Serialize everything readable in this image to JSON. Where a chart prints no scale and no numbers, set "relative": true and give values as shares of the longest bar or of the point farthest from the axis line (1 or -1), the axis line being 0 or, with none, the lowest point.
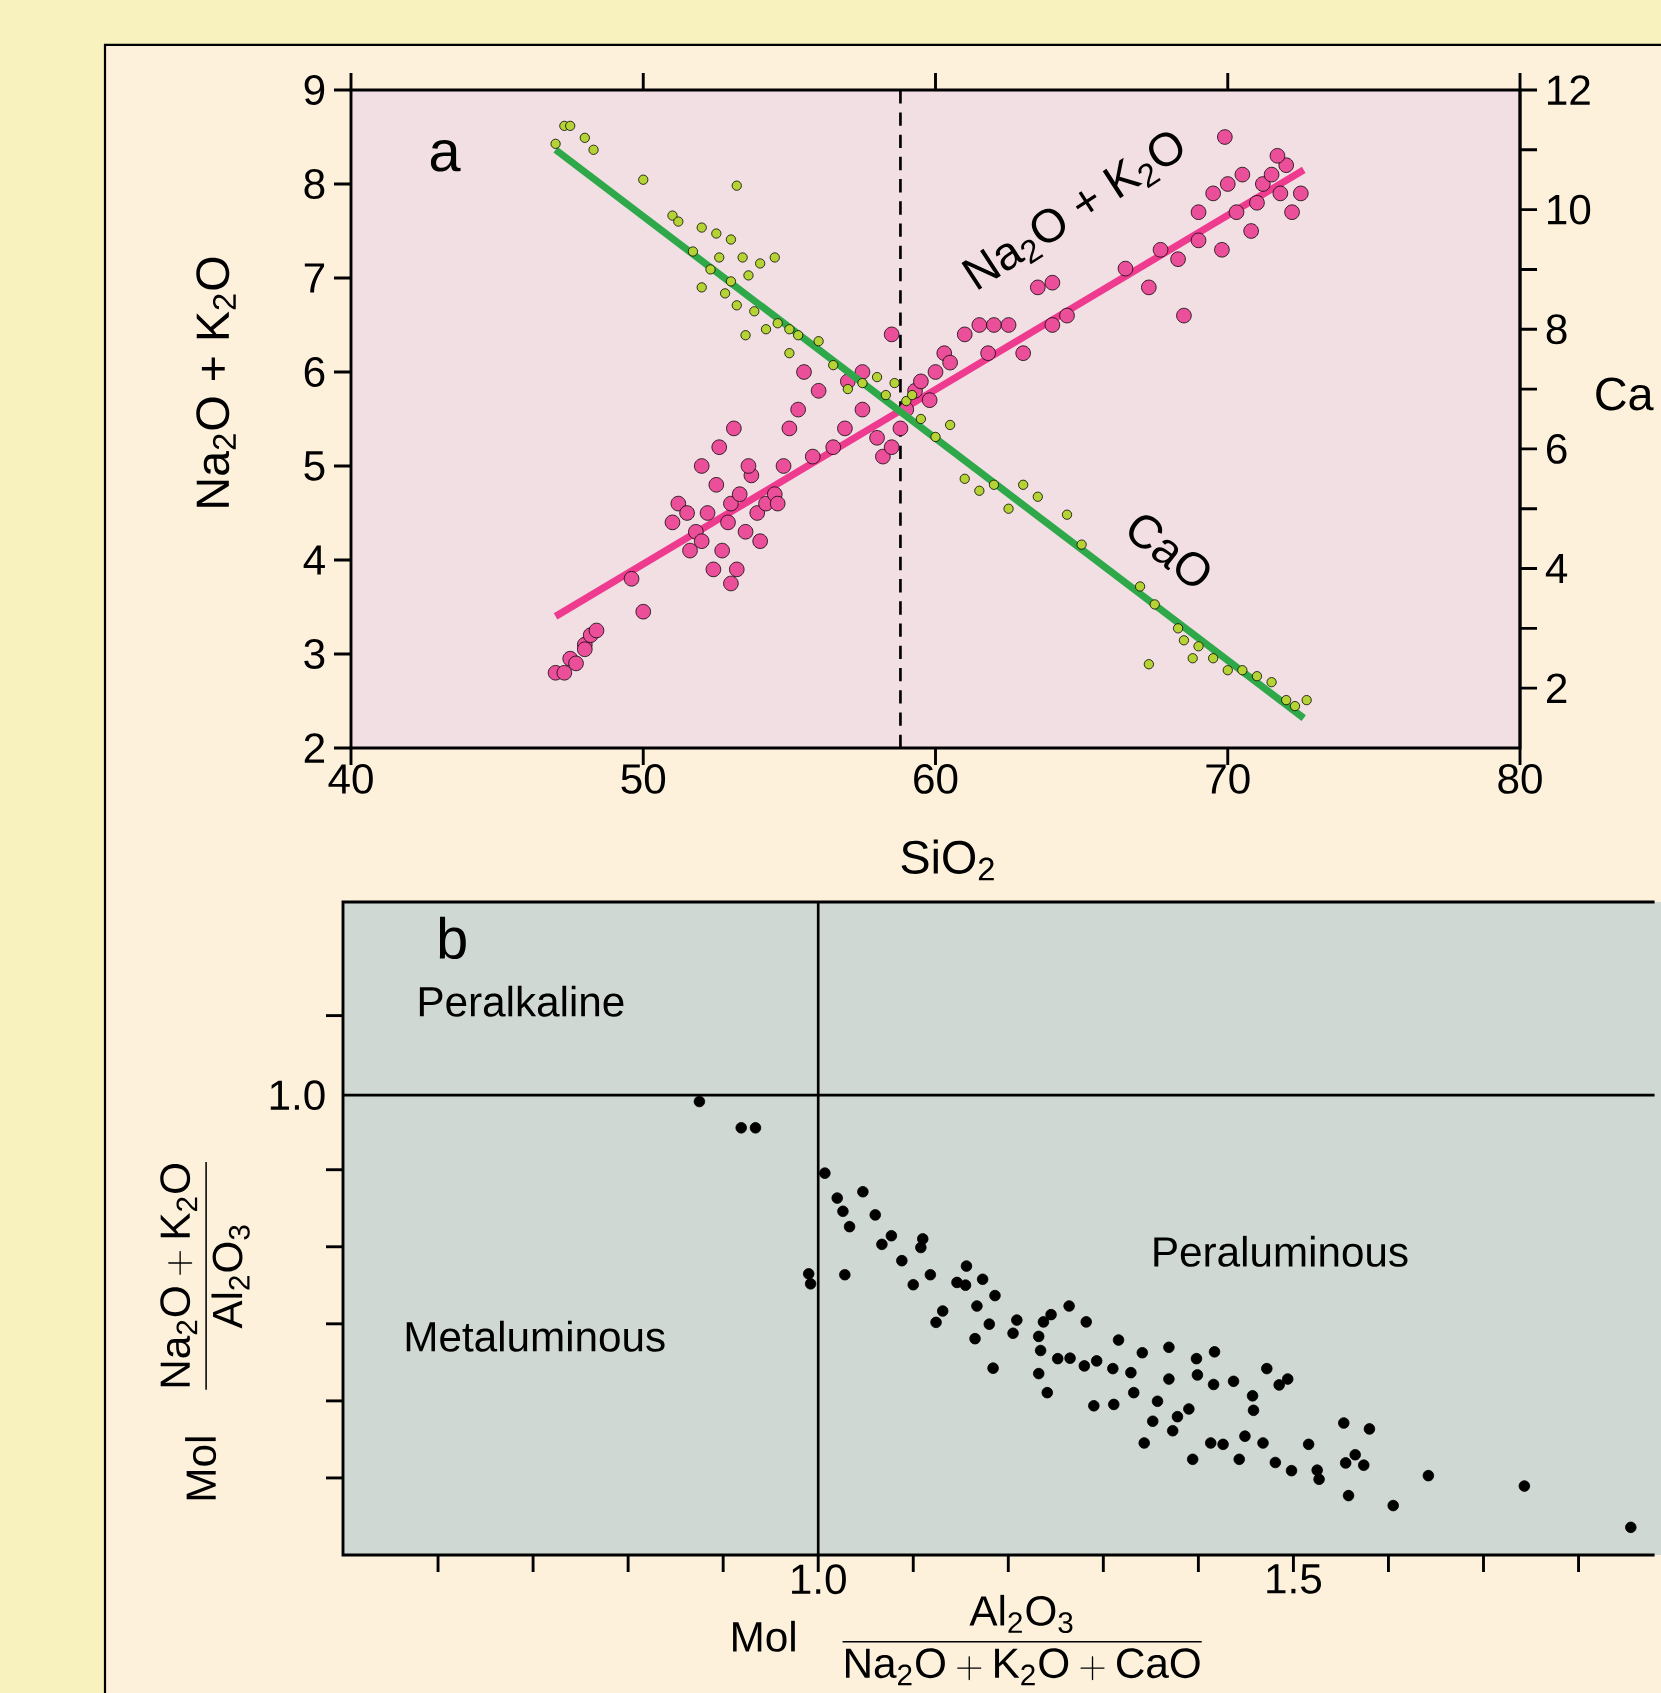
{
  "chart_data": [
    {
      "type": "scatter",
      "xlabel": "SiO$_{2}$",
      "ylabel": "Na$_{2}$O + K$_{2}$O",
      "y2label": "Ca",
      "marker": "circle",
      "xlim": [
        40,
        80
      ],
      "ylim": [
        2,
        9
      ],
      "y2lim": [
        1,
        12
      ],
      "xticks": [
        40,
        50,
        60,
        70,
        80
      ],
      "yticks": [
        2,
        3,
        4,
        5,
        6,
        7,
        8,
        9
      ],
      "y2ticks": [
        2,
        4,
        6,
        8,
        10,
        12
      ],
      "annotations": [
        "a",
        "Na$_{2}$O + K$_{2}$O",
        "CaO"
      ],
      "ref_lines": [
        {
          "axis": "x",
          "value": 58.8,
          "color": "#000000",
          "line_style": "dashed"
        }
      ],
      "series": [
        {
          "type": "scatter",
          "color": "#ec4f9a",
          "x": [
            47,
            47.3,
            47.5,
            47.7,
            48,
            48.2,
            48.4,
            48,
            49.6,
            50,
            51,
            51.2,
            51.5,
            51.8,
            52,
            52.2,
            52.5,
            52.7,
            52.9,
            53,
            53.2,
            53.3,
            53.5,
            53.7,
            53.9,
            52.4,
            54.2,
            54.5,
            54.8,
            52.6,
            53.1,
            53.6,
            53,
            52,
            54,
            51.6,
            54.6,
            55,
            55.3,
            55.8,
            56.5,
            56.9,
            56,
            55.5,
            57,
            57.5,
            58,
            58.2,
            58.5,
            58.8,
            59,
            59.3,
            59.5,
            58.5,
            57.5,
            59.8,
            60,
            60.3,
            60.5,
            61,
            61.5,
            62,
            61.8,
            62.5,
            63,
            63.5,
            64,
            64.5,
            64,
            66.5,
            67.3,
            67.7,
            68.5,
            68.3,
            69,
            69,
            69.5,
            70,
            70.3,
            70.5,
            71,
            71.2,
            71.5,
            71.8,
            72,
            72.5,
            69.9,
            71.7,
            70.8,
            69.8,
            72.2
          ],
          "values": [
            2.8,
            2.8,
            2.95,
            2.9,
            3.1,
            3.2,
            3.25,
            3.05,
            3.8,
            3.45,
            4.4,
            4.6,
            4.5,
            4.3,
            4.2,
            4.5,
            4.8,
            4.1,
            4.4,
            4.6,
            3.9,
            4.7,
            4.3,
            4.9,
            4.5,
            3.9,
            4.6,
            4.7,
            5.0,
            5.2,
            5.4,
            5.0,
            3.75,
            5.0,
            4.2,
            4.1,
            4.6,
            5.4,
            5.6,
            5.1,
            5.2,
            5.4,
            5.8,
            6.0,
            5.9,
            5.6,
            5.3,
            5.1,
            5.2,
            5.4,
            5.6,
            5.8,
            5.9,
            6.4,
            6.0,
            5.7,
            6.0,
            6.2,
            6.1,
            6.4,
            6.5,
            6.5,
            6.2,
            6.5,
            6.2,
            6.9,
            6.95,
            6.6,
            6.5,
            7.1,
            6.9,
            7.3,
            6.6,
            7.2,
            7.4,
            7.7,
            7.9,
            8.0,
            7.7,
            8.1,
            7.8,
            8.0,
            8.1,
            7.9,
            8.2,
            7.9,
            8.5,
            8.3,
            7.5,
            7.3,
            7.7
          ]
        },
        {
          "type": "scatter",
          "axis": "y2",
          "color": "#b5d334",
          "x": [
            47,
            47.3,
            47.5,
            48,
            48.3,
            50,
            53.2,
            51,
            51.2,
            52,
            52.5,
            53,
            51.7,
            52.3,
            52.6,
            53.4,
            53.6,
            54,
            54.5,
            53,
            52,
            52.8,
            53.2,
            53.8,
            54.2,
            54.6,
            55,
            55.3,
            55,
            53.5,
            56,
            56.5,
            57,
            57.5,
            58,
            58.3,
            58.6,
            59,
            59.2,
            59.5,
            60,
            60.5,
            61,
            61.5,
            62,
            63,
            63.5,
            62.5,
            64.5,
            65,
            67,
            67.5,
            68.3,
            68.5,
            69,
            69.5,
            70,
            70.5,
            71,
            71.5,
            72,
            72.3,
            72.7,
            68.8,
            67.3
          ],
          "values": [
            11.1,
            11.4,
            11.4,
            11.2,
            11.0,
            10.5,
            10.4,
            9.9,
            9.8,
            9.7,
            9.6,
            9.5,
            9.3,
            9.0,
            9.2,
            9.2,
            8.9,
            9.1,
            9.2,
            8.8,
            8.7,
            8.6,
            8.4,
            8.3,
            8.0,
            8.1,
            8.0,
            7.9,
            7.6,
            7.9,
            7.8,
            7.4,
            7.0,
            7.1,
            7.2,
            6.9,
            7.1,
            6.8,
            6.9,
            6.5,
            6.2,
            6.4,
            5.5,
            5.3,
            5.4,
            5.4,
            5.2,
            5.0,
            4.9,
            4.4,
            3.7,
            3.4,
            3.0,
            2.8,
            2.7,
            2.5,
            2.3,
            2.3,
            2.2,
            2.1,
            1.8,
            1.7,
            1.8,
            2.5,
            2.4
          ]
        },
        {
          "type": "line",
          "marker": "none",
          "color": "#ee3b8f",
          "x": [
            47,
            72.6
          ],
          "values": [
            3.4,
            8.15
          ]
        },
        {
          "type": "line",
          "marker": "none",
          "axis": "y2",
          "color": "#2fa84a",
          "x": [
            47,
            72.6
          ],
          "values": [
            11.0,
            1.5
          ]
        }
      ]
    },
    {
      "type": "scatter",
      "relative": true,
      "xlabel": "\\mathrm{Mol}\\quad\\frac{\\mathrm{Al_{2}O_{3}}}{\\mathrm{Na_{2}O} + \\mathrm{K_{2}O} + \\mathrm{CaO}}",
      "ylabel": "\\mathrm{Mol}\\quad\\frac{\\mathrm{Na_{2}O} + \\mathrm{K_{2}O}}{\\mathrm{Al_{2}O_{3}}}",
      "marker": "circle",
      "xlim": [
        0.5,
        1.88
      ],
      "xticks": [
        {
          "value": 1.0,
          "label": "1.0"
        },
        {
          "value": 1.5,
          "label": "1.5"
        }
      ],
      "annotations": [
        "b",
        "Peralkaline",
        "Metaluminous",
        "Peraluminous"
      ],
      "ref_lines": [
        {
          "axis": "x",
          "value": 1.0,
          "color": "#000000"
        },
        {
          "axis": "y",
          "value": 1.014,
          "color": "#000000",
          "label": "1.0"
        }
      ],
      "series": [
        {
          "color": "#000000",
          "x": [
            0.875,
            0.919,
            0.934,
            0.99,
            0.992,
            1.007,
            1.02,
            1.026,
            1.033,
            1.047,
            1.06,
            1.028,
            1.067,
            1.077,
            1.088,
            1.108,
            1.11,
            1.1,
            1.118,
            1.124,
            1.131,
            1.146,
            1.156,
            1.155,
            1.173,
            1.167,
            1.186,
            1.165,
            1.18,
            1.184,
            1.209,
            1.205,
            1.232,
            1.237,
            1.245,
            1.264,
            1.232,
            1.234,
            1.241,
            1.252,
            1.265,
            1.282,
            1.28,
            1.29,
            1.293,
            1.31,
            1.311,
            1.316,
            1.329,
            1.332,
            1.341,
            1.343,
            1.352,
            1.357,
            1.369,
            1.369,
            1.373,
            1.378,
            1.39,
            1.394,
            1.398,
            1.399,
            1.417,
            1.416,
            1.413,
            1.426,
            1.437,
            1.443,
            1.449,
            1.458,
            1.457,
            1.472,
            1.468,
            1.481,
            1.485,
            1.494,
            1.498,
            1.516,
            1.525,
            1.527,
            1.553,
            1.555,
            1.558,
            1.565,
            1.574,
            1.58,
            1.605,
            1.642,
            1.743,
            1.855
          ],
          "values": [
            1.0,
            0.942,
            0.942,
            0.62,
            0.598,
            0.842,
            0.787,
            0.758,
            0.724,
            0.801,
            0.75,
            0.618,
            0.685,
            0.704,
            0.649,
            0.678,
            0.697,
            0.596,
            0.618,
            0.513,
            0.538,
            0.601,
            0.637,
            0.595,
            0.608,
            0.549,
            0.572,
            0.477,
            0.509,
            0.412,
            0.518,
            0.489,
            0.482,
            0.514,
            0.53,
            0.549,
            0.4,
            0.451,
            0.358,
            0.433,
            0.434,
            0.514,
            0.417,
            0.329,
            0.428,
            0.411,
            0.332,
            0.474,
            0.402,
            0.358,
            0.446,
            0.247,
            0.295,
            0.339,
            0.458,
            0.388,
            0.274,
            0.305,
            0.322,
            0.211,
            0.433,
            0.397,
            0.448,
            0.376,
            0.247,
            0.244,
            0.383,
            0.211,
            0.262,
            0.319,
            0.351,
            0.411,
            0.247,
            0.204,
            0.375,
            0.388,
            0.186,
            0.244,
            0.187,
            0.167,
            0.291,
            0.203,
            0.131,
            0.221,
            0.198,
            0.278,
            0.109,
            0.175,
            0.152,
            0.061
          ]
        }
      ]
    }
  ]
}
